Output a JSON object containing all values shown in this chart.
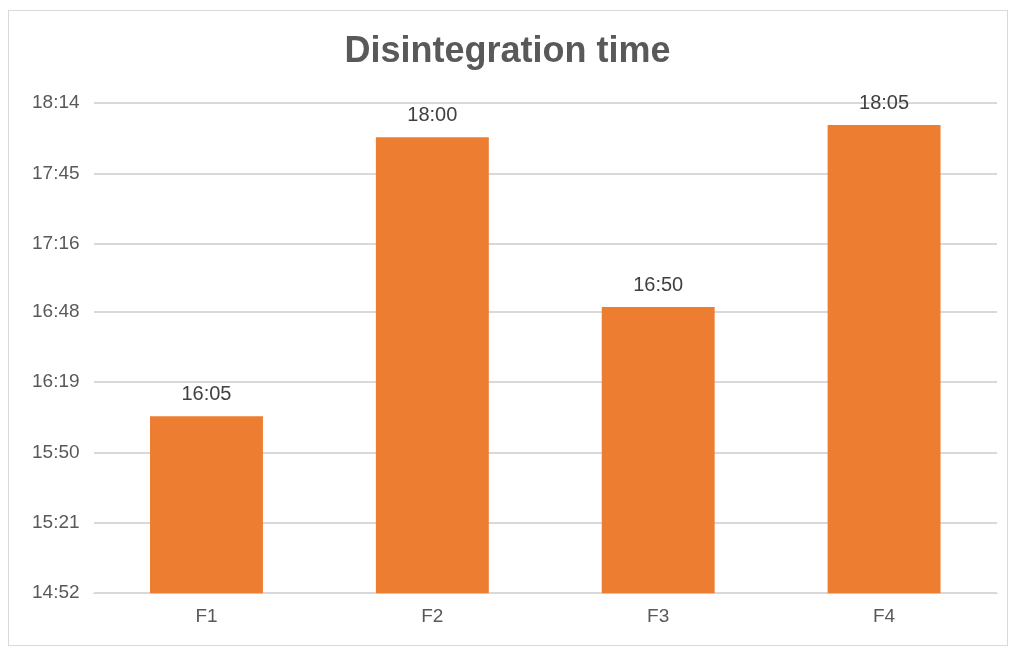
{
  "chart_data": {
    "type": "bar",
    "title": "Disintegration time",
    "categories": [
      "F1",
      "F2",
      "F3",
      "F4"
    ],
    "values": [
      16.083,
      18,
      16.833,
      18.083
    ],
    "value_labels": [
      "16:05",
      "18:00",
      "16:50",
      "18:05"
    ],
    "color": "#ed7d31",
    "ylim": [
      14.8667,
      18.2333
    ],
    "yticks": [
      {
        "value": 14.8667,
        "label": "14:52"
      },
      {
        "value": 15.35,
        "label": "15:21"
      },
      {
        "value": 15.8333,
        "label": "15:50"
      },
      {
        "value": 16.3167,
        "label": "16:19"
      },
      {
        "value": 16.8,
        "label": "16:48"
      },
      {
        "value": 17.2667,
        "label": "17:16"
      },
      {
        "value": 17.75,
        "label": "17:45"
      },
      {
        "value": 18.2333,
        "label": "18:14"
      }
    ],
    "grid": "y",
    "legend": false
  }
}
